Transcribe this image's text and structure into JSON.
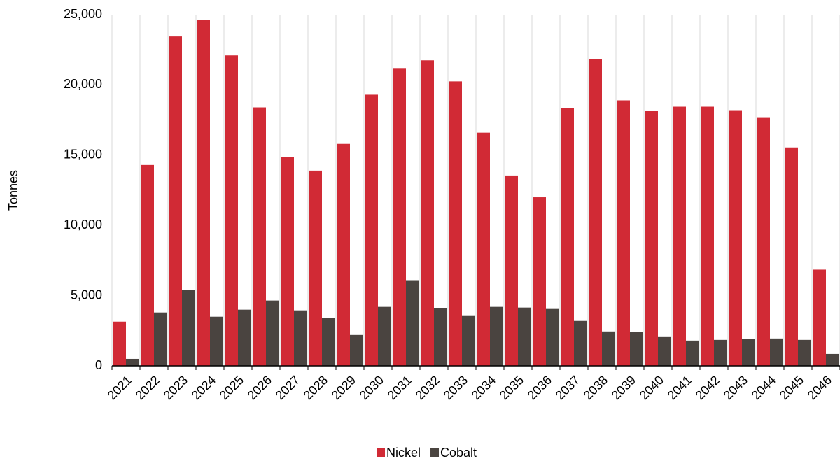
{
  "chart_data": {
    "type": "bar",
    "y_label": "Tonnes",
    "categories": [
      "2021",
      "2022",
      "2023",
      "2024",
      "2025",
      "2026",
      "2027",
      "2028",
      "2029",
      "2030",
      "2031",
      "2032",
      "2033",
      "2034",
      "2035",
      "2036",
      "2037",
      "2038",
      "2039",
      "2040",
      "2041",
      "2042",
      "2043",
      "2044",
      "2045",
      "2046"
    ],
    "series": [
      {
        "name": "Nickel",
        "color": "#d12a35",
        "values": [
          3150,
          14300,
          23450,
          24650,
          22100,
          18400,
          14850,
          13900,
          15800,
          19300,
          21200,
          21750,
          20250,
          16600,
          13550,
          12000,
          18350,
          21850,
          18900,
          18150,
          18450,
          18450,
          18200,
          17700,
          15550,
          6850
        ]
      },
      {
        "name": "Cobalt",
        "color": "#4a4440",
        "values": [
          500,
          3800,
          5400,
          3500,
          4000,
          4650,
          3950,
          3400,
          2200,
          4200,
          6100,
          4100,
          3550,
          4200,
          4150,
          4050,
          3200,
          2450,
          2400,
          2050,
          1800,
          1850,
          1900,
          1950,
          1850,
          850
        ]
      }
    ],
    "ylim": [
      0,
      25000
    ],
    "yticks": [
      0,
      {
        "value": 5000,
        "label": "5,000"
      },
      {
        "value": 10000,
        "label": "10,000"
      },
      {
        "value": 15000,
        "label": "15,000"
      },
      {
        "value": 20000,
        "label": "20,000"
      },
      {
        "value": 25000,
        "label": "25,000"
      }
    ],
    "grid": true,
    "legend": "bottom"
  }
}
